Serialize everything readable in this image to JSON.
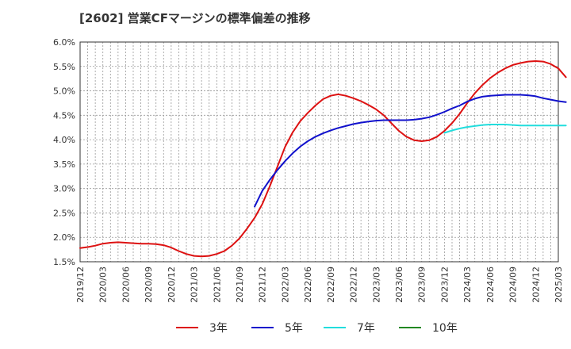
{
  "chart_data": {
    "type": "line",
    "title": "[2602]  営業CFマージンの標準偏差の推移",
    "xlabel": "",
    "ylabel": "",
    "ylim": [
      0.015,
      0.06
    ],
    "y_ticks": [
      "6.0%",
      "5.5%",
      "5.0%",
      "4.5%",
      "4.0%",
      "3.5%",
      "3.0%",
      "2.5%",
      "2.0%",
      "1.5%"
    ],
    "x_ticks": [
      "2019/12",
      "2020/03",
      "2020/06",
      "2020/09",
      "2020/12",
      "2021/03",
      "2021/06",
      "2021/09",
      "2021/12",
      "2022/03",
      "2022/06",
      "2022/09",
      "2022/12",
      "2023/03",
      "2023/06",
      "2023/09",
      "2023/12",
      "2024/03",
      "2024/06",
      "2024/09",
      "2024/12",
      "2025/03"
    ],
    "grid": true,
    "legend_position": "bottom",
    "series": [
      {
        "name": "3年",
        "color": "#dd1111",
        "points": [
          [
            "2019/12",
            0.0178
          ],
          [
            "2020/01",
            0.018
          ],
          [
            "2020/02",
            0.0183
          ],
          [
            "2020/03",
            0.0187
          ],
          [
            "2020/04",
            0.0189
          ],
          [
            "2020/05",
            0.019
          ],
          [
            "2020/06",
            0.0189
          ],
          [
            "2020/07",
            0.0188
          ],
          [
            "2020/08",
            0.0187
          ],
          [
            "2020/09",
            0.0187
          ],
          [
            "2020/10",
            0.0186
          ],
          [
            "2020/11",
            0.0184
          ],
          [
            "2020/12",
            0.0179
          ],
          [
            "2021/01",
            0.0172
          ],
          [
            "2021/02",
            0.0166
          ],
          [
            "2021/03",
            0.0162
          ],
          [
            "2021/04",
            0.0161
          ],
          [
            "2021/05",
            0.0162
          ],
          [
            "2021/06",
            0.0166
          ],
          [
            "2021/07",
            0.0172
          ],
          [
            "2021/08",
            0.0183
          ],
          [
            "2021/09",
            0.0198
          ],
          [
            "2021/10",
            0.0218
          ],
          [
            "2021/11",
            0.024
          ],
          [
            "2021/12",
            0.0268
          ],
          [
            "2022/01",
            0.0305
          ],
          [
            "2022/02",
            0.0345
          ],
          [
            "2022/03",
            0.0385
          ],
          [
            "2022/04",
            0.0415
          ],
          [
            "2022/05",
            0.0438
          ],
          [
            "2022/06",
            0.0455
          ],
          [
            "2022/07",
            0.047
          ],
          [
            "2022/08",
            0.0483
          ],
          [
            "2022/09",
            0.049
          ],
          [
            "2022/10",
            0.0493
          ],
          [
            "2022/11",
            0.049
          ],
          [
            "2022/12",
            0.0485
          ],
          [
            "2023/01",
            0.0479
          ],
          [
            "2023/02",
            0.0471
          ],
          [
            "2023/03",
            0.0462
          ],
          [
            "2023/04",
            0.045
          ],
          [
            "2023/05",
            0.0434
          ],
          [
            "2023/06",
            0.0418
          ],
          [
            "2023/07",
            0.0406
          ],
          [
            "2023/08",
            0.0399
          ],
          [
            "2023/09",
            0.0397
          ],
          [
            "2023/10",
            0.0399
          ],
          [
            "2023/11",
            0.0406
          ],
          [
            "2023/12",
            0.0418
          ],
          [
            "2024/01",
            0.0434
          ],
          [
            "2024/02",
            0.0453
          ],
          [
            "2024/03",
            0.0475
          ],
          [
            "2024/04",
            0.0495
          ],
          [
            "2024/05",
            0.0512
          ],
          [
            "2024/06",
            0.0526
          ],
          [
            "2024/07",
            0.0537
          ],
          [
            "2024/08",
            0.0546
          ],
          [
            "2024/09",
            0.0553
          ],
          [
            "2024/10",
            0.0557
          ],
          [
            "2024/11",
            0.056
          ],
          [
            "2024/12",
            0.0561
          ],
          [
            "2025/01",
            0.056
          ],
          [
            "2025/02",
            0.0555
          ],
          [
            "2025/03",
            0.0546
          ],
          [
            "2025/04",
            0.0528
          ]
        ]
      },
      {
        "name": "5年",
        "color": "#1111cc",
        "points": [
          [
            "2021/11",
            0.0263
          ],
          [
            "2021/12",
            0.0295
          ],
          [
            "2022/01",
            0.0318
          ],
          [
            "2022/02",
            0.0338
          ],
          [
            "2022/03",
            0.0356
          ],
          [
            "2022/04",
            0.0372
          ],
          [
            "2022/05",
            0.0386
          ],
          [
            "2022/06",
            0.0397
          ],
          [
            "2022/07",
            0.0406
          ],
          [
            "2022/08",
            0.0413
          ],
          [
            "2022/09",
            0.0419
          ],
          [
            "2022/10",
            0.0424
          ],
          [
            "2022/11",
            0.0428
          ],
          [
            "2022/12",
            0.0432
          ],
          [
            "2023/01",
            0.0435
          ],
          [
            "2023/02",
            0.0437
          ],
          [
            "2023/03",
            0.0439
          ],
          [
            "2023/04",
            0.044
          ],
          [
            "2023/05",
            0.044
          ],
          [
            "2023/06",
            0.044
          ],
          [
            "2023/07",
            0.044
          ],
          [
            "2023/08",
            0.0441
          ],
          [
            "2023/09",
            0.0443
          ],
          [
            "2023/10",
            0.0446
          ],
          [
            "2023/11",
            0.0451
          ],
          [
            "2023/12",
            0.0457
          ],
          [
            "2024/01",
            0.0464
          ],
          [
            "2024/02",
            0.047
          ],
          [
            "2024/03",
            0.0478
          ],
          [
            "2024/04",
            0.0484
          ],
          [
            "2024/05",
            0.0488
          ],
          [
            "2024/06",
            0.049
          ],
          [
            "2024/07",
            0.0491
          ],
          [
            "2024/08",
            0.0492
          ],
          [
            "2024/09",
            0.0492
          ],
          [
            "2024/10",
            0.0492
          ],
          [
            "2024/11",
            0.0491
          ],
          [
            "2024/12",
            0.0489
          ],
          [
            "2025/01",
            0.0485
          ],
          [
            "2025/02",
            0.0482
          ],
          [
            "2025/03",
            0.0479
          ],
          [
            "2025/04",
            0.0477
          ]
        ]
      },
      {
        "name": "7年",
        "color": "#22dddd",
        "points": [
          [
            "2023/12",
            0.0414
          ],
          [
            "2024/01",
            0.0419
          ],
          [
            "2024/02",
            0.0423
          ],
          [
            "2024/03",
            0.0426
          ],
          [
            "2024/04",
            0.0428
          ],
          [
            "2024/05",
            0.043
          ],
          [
            "2024/06",
            0.0431
          ],
          [
            "2024/07",
            0.0431
          ],
          [
            "2024/08",
            0.0431
          ],
          [
            "2024/09",
            0.043
          ],
          [
            "2024/10",
            0.0429
          ],
          [
            "2024/11",
            0.0429
          ],
          [
            "2024/12",
            0.0429
          ],
          [
            "2025/01",
            0.0429
          ],
          [
            "2025/02",
            0.0429
          ],
          [
            "2025/03",
            0.0429
          ],
          [
            "2025/04",
            0.0429
          ]
        ]
      },
      {
        "name": "10年",
        "color": "#228822",
        "points": []
      }
    ]
  }
}
